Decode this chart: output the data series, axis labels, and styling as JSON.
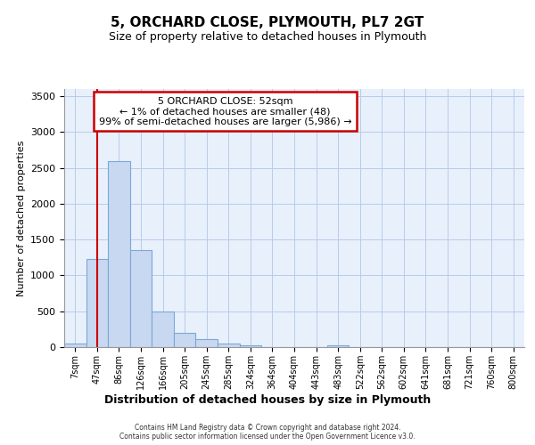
{
  "title1": "5, ORCHARD CLOSE, PLYMOUTH, PL7 2GT",
  "title2": "Size of property relative to detached houses in Plymouth",
  "xlabel": "Distribution of detached houses by size in Plymouth",
  "ylabel": "Number of detached properties",
  "bar_color": "#c8d8f0",
  "bar_edge_color": "#7aa8d8",
  "background_color": "#e8f0fc",
  "grid_color": "#b8cce8",
  "vline_color": "#cc0000",
  "vline_x": 1,
  "annotation_box_color": "#cc0000",
  "annotation_text_line1": "5 ORCHARD CLOSE: 52sqm",
  "annotation_text_line2": "← 1% of detached houses are smaller (48)",
  "annotation_text_line3": "99% of semi-detached houses are larger (5,986) →",
  "categories": [
    "7sqm",
    "47sqm",
    "86sqm",
    "126sqm",
    "166sqm",
    "205sqm",
    "245sqm",
    "285sqm",
    "324sqm",
    "364sqm",
    "404sqm",
    "443sqm",
    "483sqm",
    "522sqm",
    "562sqm",
    "602sqm",
    "641sqm",
    "681sqm",
    "721sqm",
    "760sqm",
    "800sqm"
  ],
  "values": [
    55,
    1225,
    2590,
    1350,
    500,
    200,
    110,
    55,
    30,
    0,
    0,
    0,
    20,
    0,
    0,
    0,
    0,
    0,
    0,
    0,
    0
  ],
  "ylim": [
    0,
    3600
  ],
  "yticks": [
    0,
    500,
    1000,
    1500,
    2000,
    2500,
    3000,
    3500
  ],
  "footer1": "Contains HM Land Registry data © Crown copyright and database right 2024.",
  "footer2": "Contains public sector information licensed under the Open Government Licence v3.0."
}
